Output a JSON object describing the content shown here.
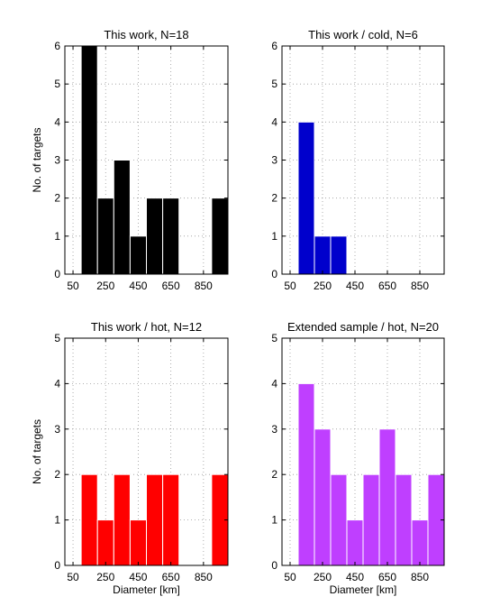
{
  "chart_data": [
    {
      "type": "bar",
      "title": "This work, N=18",
      "ylabel": "No. of targets",
      "xlabel": "",
      "bin_edges": [
        100,
        200,
        300,
        400,
        500,
        600,
        700,
        800,
        900,
        1000
      ],
      "values": [
        6,
        2,
        3,
        1,
        2,
        2,
        0,
        0,
        2
      ],
      "color": "#000000",
      "xlim": [
        0,
        1000
      ],
      "ylim": [
        0,
        6
      ],
      "xticks": [
        "50",
        "250",
        "450",
        "650",
        "850"
      ],
      "yticks": [
        "0",
        "1",
        "2",
        "3",
        "4",
        "5",
        "6"
      ],
      "grid": true
    },
    {
      "type": "bar",
      "title": "This work / cold, N=6",
      "ylabel": "",
      "xlabel": "",
      "bin_edges": [
        100,
        200,
        300,
        400,
        500,
        600,
        700,
        800,
        900,
        1000
      ],
      "values": [
        4,
        1,
        1,
        0,
        0,
        0,
        0,
        0,
        0
      ],
      "color": "#0000cc",
      "xlim": [
        0,
        1000
      ],
      "ylim": [
        0,
        6
      ],
      "xticks": [
        "50",
        "250",
        "450",
        "650",
        "850"
      ],
      "yticks": [
        "0",
        "1",
        "2",
        "3",
        "4",
        "5",
        "6"
      ],
      "grid": true
    },
    {
      "type": "bar",
      "title": "This work / hot, N=12",
      "ylabel": "No. of targets",
      "xlabel": "Diameter [km]",
      "bin_edges": [
        100,
        200,
        300,
        400,
        500,
        600,
        700,
        800,
        900,
        1000
      ],
      "values": [
        2,
        1,
        2,
        1,
        2,
        2,
        0,
        0,
        2
      ],
      "color": "#ff0000",
      "xlim": [
        0,
        1000
      ],
      "ylim": [
        0,
        5
      ],
      "xticks": [
        "50",
        "250",
        "450",
        "650",
        "850"
      ],
      "yticks": [
        "0",
        "1",
        "2",
        "3",
        "4",
        "5"
      ],
      "grid": true
    },
    {
      "type": "bar",
      "title": "Extended sample / hot, N=20",
      "ylabel": "",
      "xlabel": "Diameter [km]",
      "bin_edges": [
        100,
        200,
        300,
        400,
        500,
        600,
        700,
        800,
        900,
        1000
      ],
      "values": [
        4,
        3,
        2,
        1,
        2,
        3,
        2,
        1,
        2
      ],
      "color": "#bf3fff",
      "xlim": [
        0,
        1000
      ],
      "ylim": [
        0,
        5
      ],
      "xticks": [
        "50",
        "250",
        "450",
        "650",
        "850"
      ],
      "yticks": [
        "0",
        "1",
        "2",
        "3",
        "4",
        "5"
      ],
      "grid": true
    }
  ]
}
